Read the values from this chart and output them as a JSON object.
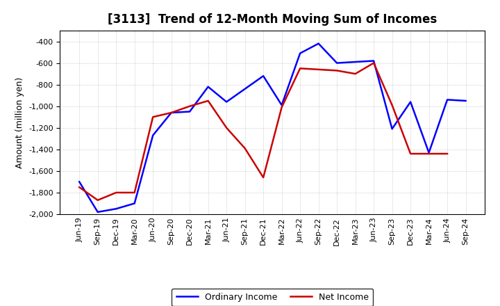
{
  "title": "[3113]  Trend of 12-Month Moving Sum of Incomes",
  "ylabel": "Amount (million yen)",
  "ylim": [
    -2000,
    -300
  ],
  "yticks": [
    -2000,
    -1800,
    -1600,
    -1400,
    -1200,
    -1000,
    -800,
    -600,
    -400
  ],
  "x_labels": [
    "Jun-19",
    "Sep-19",
    "Dec-19",
    "Mar-20",
    "Jun-20",
    "Sep-20",
    "Dec-20",
    "Mar-21",
    "Jun-21",
    "Sep-21",
    "Dec-21",
    "Mar-22",
    "Jun-22",
    "Sep-22",
    "Dec-22",
    "Mar-23",
    "Jun-23",
    "Sep-23",
    "Dec-23",
    "Mar-24",
    "Jun-24",
    "Sep-24"
  ],
  "ordinary_income": [
    -1700,
    -1980,
    -1950,
    -1900,
    -1270,
    -1060,
    -1050,
    -820,
    -960,
    -840,
    -720,
    -990,
    -510,
    -420,
    -600,
    -590,
    -580,
    -1210,
    -960,
    -1430,
    -940,
    -950
  ],
  "net_income": [
    -1750,
    -1870,
    -1800,
    -1800,
    -1100,
    -1060,
    -1000,
    -950,
    -1200,
    -1390,
    -1660,
    -1010,
    -650,
    -660,
    -670,
    -700,
    -600,
    -990,
    -1440,
    -1440,
    -1440,
    null
  ],
  "ordinary_color": "#0000FF",
  "net_color": "#CC0000",
  "legend_ordinary": "Ordinary Income",
  "legend_net": "Net Income",
  "bg_color": "#FFFFFF",
  "plot_bg_color": "#FFFFFF",
  "grid_color": "#AAAAAA",
  "title_fontsize": 12,
  "label_fontsize": 9,
  "tick_fontsize": 8,
  "line_width": 1.8
}
